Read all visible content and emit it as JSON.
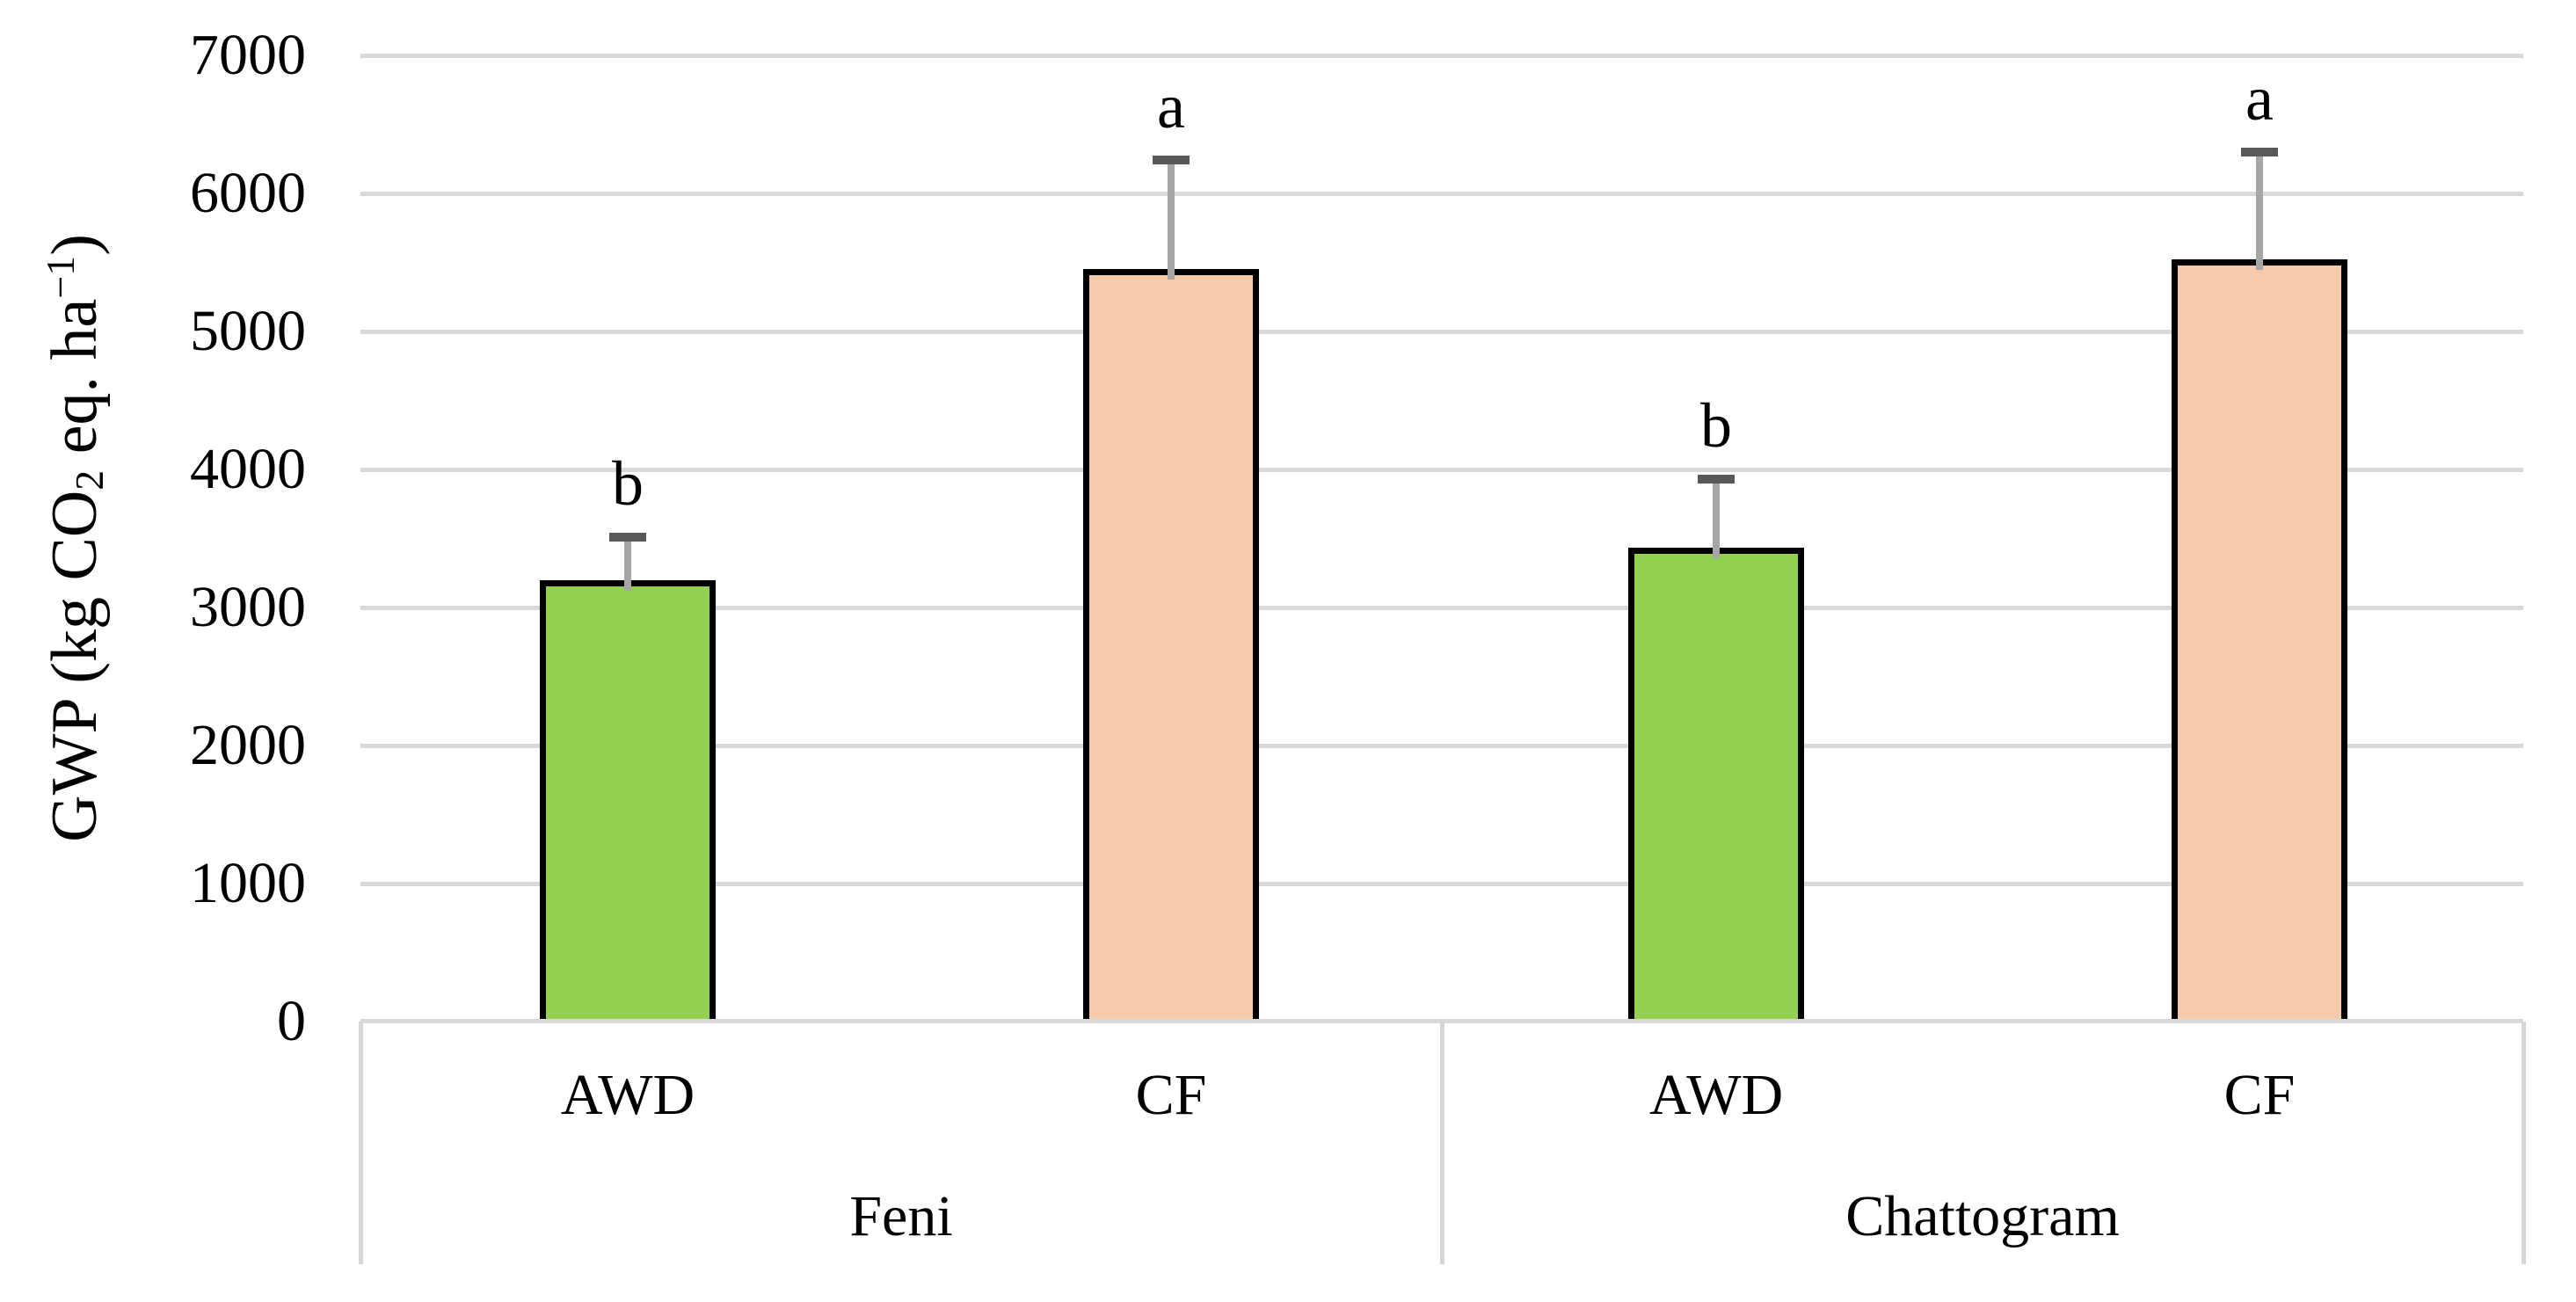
{
  "chart_data": {
    "type": "bar",
    "title": "",
    "ylabel": "GWP (kg CO2 eq. ha−1)",
    "ylabel_parts": {
      "prefix": "GWP (kg CO",
      "sub": "2",
      "mid": " eq. ha",
      "sup": "−1",
      "suffix": ")"
    },
    "y_axis": {
      "min": 0,
      "max": 7000,
      "step": 1000,
      "tick_labels": [
        "0",
        "1000",
        "2000",
        "3000",
        "4000",
        "5000",
        "6000",
        "7000"
      ]
    },
    "grid": "horizontal",
    "legend": null,
    "groups": [
      "Feni",
      "Chattogram"
    ],
    "categories": [
      "AWD",
      "CF",
      "AWD",
      "CF"
    ],
    "bars": [
      {
        "group": "Feni",
        "category": "AWD",
        "value": 3200,
        "error_upper": 310,
        "letter": "b",
        "fill": "#92d050"
      },
      {
        "group": "Feni",
        "category": "CF",
        "value": 5450,
        "error_upper": 790,
        "letter": "a",
        "fill": "#f6cbac"
      },
      {
        "group": "Chattogram",
        "category": "AWD",
        "value": 3430,
        "error_upper": 500,
        "letter": "b",
        "fill": "#92d050"
      },
      {
        "group": "Chattogram",
        "category": "CF",
        "value": 5520,
        "error_upper": 780,
        "letter": "a",
        "fill": "#f6cbac"
      }
    ],
    "colors": {
      "background": "#ffffff",
      "gridline": "#d9d9d9",
      "axis_frame": "#d6d6d6",
      "bar_border": "#000000",
      "error_line": "#a6a6a6",
      "error_cap": "#595959",
      "text": "#000000",
      "green_fill": "#92d050",
      "peach_fill": "#f6cbac"
    }
  }
}
